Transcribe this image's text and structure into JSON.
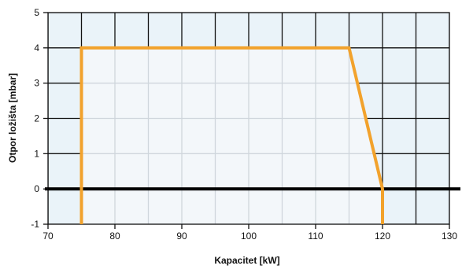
{
  "chart_data": {
    "type": "area",
    "title": "",
    "xlabel": "Kapacitet [kW]",
    "ylabel": "Otpor ložišta  [mbar]",
    "xlim": [
      70,
      130
    ],
    "ylim": [
      -1,
      5
    ],
    "x_ticks": [
      70,
      80,
      90,
      100,
      110,
      120,
      130
    ],
    "y_ticks": [
      -1,
      0,
      1,
      2,
      3,
      4,
      5
    ],
    "x_grid_step": 5,
    "y_grid_step": 1,
    "grid": true,
    "legend": "none",
    "series": [
      {
        "points": [
          {
            "x": 75,
            "y": -1
          },
          {
            "x": 75,
            "y": 4
          },
          {
            "x": 115,
            "y": 4
          },
          {
            "x": 120,
            "y": 0
          },
          {
            "x": 120,
            "y": -1
          }
        ]
      }
    ],
    "reference_line_y": 0,
    "colors": {
      "outline": "#f2a22c",
      "inner_fill": "#f3f7fa",
      "outer_fill": "#eaf3f9",
      "inner_grid": "#cfd6dc",
      "outer_grid": "#111111",
      "axis": "#111111",
      "zero_line": "#000000",
      "text": "#111111"
    }
  }
}
